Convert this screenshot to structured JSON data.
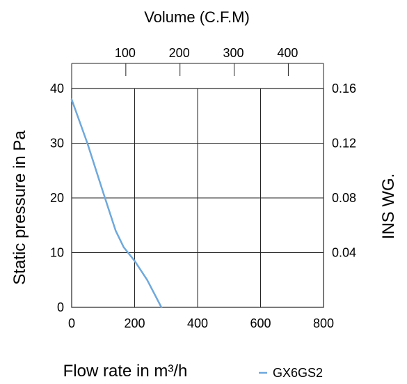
{
  "chart_data": {
    "type": "line",
    "title": "Volume (C.F.M)",
    "xlabel": "Flow rate in m³/h",
    "ylabel": "Static pressure in Pa",
    "y2label": "INS WG.",
    "xlim": [
      0,
      800
    ],
    "ylim": [
      0,
      40
    ],
    "x_ticks": [
      0,
      200,
      400,
      600,
      800
    ],
    "y_ticks": [
      0,
      10,
      20,
      30,
      40
    ],
    "y2_ticks": [
      {
        "value": 0.04,
        "label": "0.04"
      },
      {
        "value": 0.08,
        "label": "0.08"
      },
      {
        "value": 0.12,
        "label": "0.12"
      },
      {
        "value": 0.16,
        "label": "0.16"
      }
    ],
    "top_ticks": [
      {
        "value": 100,
        "label": "100"
      },
      {
        "value": 200,
        "label": "200"
      },
      {
        "value": 300,
        "label": "300"
      },
      {
        "value": 400,
        "label": "400"
      }
    ],
    "grid": true,
    "legend_position": "bottom-right",
    "series": [
      {
        "name": "GX6GS2",
        "color": "#6fa8dc",
        "points": [
          [
            0,
            38
          ],
          [
            50,
            30
          ],
          [
            100,
            21
          ],
          [
            140,
            14
          ],
          [
            165,
            11
          ],
          [
            200,
            8.5
          ],
          [
            240,
            5
          ],
          [
            285,
            0
          ]
        ]
      }
    ]
  }
}
